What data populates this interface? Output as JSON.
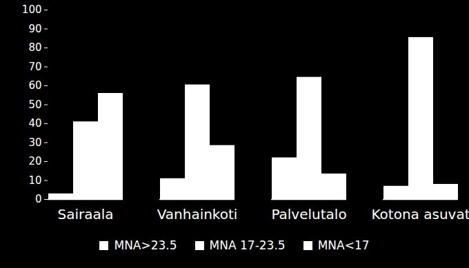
{
  "chart_data": {
    "type": "bar",
    "categories": [
      "Sairaala",
      "Vanhainkoti",
      "Palvelutalo",
      "Kotona asuvat"
    ],
    "series": [
      {
        "name": "MNA>23.5",
        "color": "#ffffff",
        "values": [
          3,
          11,
          22,
          7
        ]
      },
      {
        "name": "MNA 17-23.5",
        "color": "#ffffff",
        "values": [
          41,
          60.5,
          64.5,
          85.5
        ]
      },
      {
        "name": "MNA<17",
        "color": "#ffffff",
        "values": [
          56,
          28.5,
          13.5,
          8
        ]
      }
    ],
    "ylim": [
      0,
      100
    ],
    "yticks": [
      0,
      10,
      20,
      30,
      40,
      50,
      60,
      70,
      80,
      90,
      100
    ],
    "grid": false,
    "legend": "bottom"
  }
}
